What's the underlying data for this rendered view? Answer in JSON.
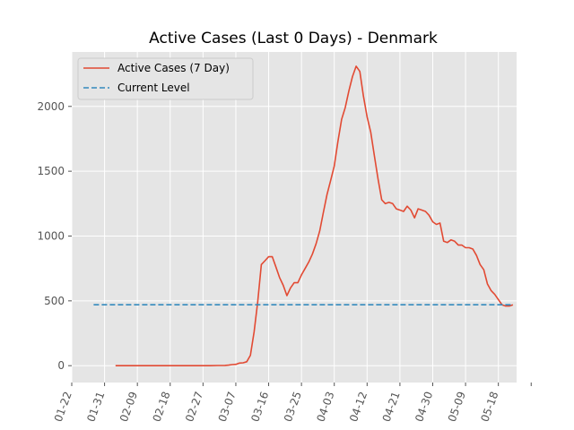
{
  "chart_data": {
    "type": "line",
    "title": "Active Cases (Last 0 Days) - Denmark",
    "xlabel": "",
    "ylabel": "",
    "x_ticks": [
      "01-22",
      "01-31",
      "02-09",
      "02-18",
      "02-27",
      "03-07",
      "03-16",
      "03-25",
      "04-03",
      "04-12",
      "04-21",
      "04-30",
      "05-09",
      "05-18"
    ],
    "x_range_days": [
      0,
      122
    ],
    "ylim": [
      -130,
      2420
    ],
    "y_ticks": [
      0,
      500,
      1000,
      1500,
      2000
    ],
    "grid": true,
    "legend_position": "top-left",
    "series": [
      {
        "name": "Active Cases (7 Day)",
        "color": "#E24A33",
        "style": "solid",
        "points": [
          [
            12,
            0
          ],
          [
            20,
            0
          ],
          [
            30,
            0
          ],
          [
            38,
            0
          ],
          [
            40,
            1
          ],
          [
            42,
            2
          ],
          [
            43,
            4
          ],
          [
            44,
            8
          ],
          [
            45,
            10
          ],
          [
            46,
            20
          ],
          [
            47,
            22
          ],
          [
            48,
            30
          ],
          [
            49,
            80
          ],
          [
            50,
            260
          ],
          [
            51,
            490
          ],
          [
            52,
            780
          ],
          [
            53,
            810
          ],
          [
            54,
            840
          ],
          [
            55,
            840
          ],
          [
            56,
            760
          ],
          [
            57,
            680
          ],
          [
            58,
            620
          ],
          [
            59,
            540
          ],
          [
            60,
            600
          ],
          [
            61,
            640
          ],
          [
            62,
            640
          ],
          [
            63,
            700
          ],
          [
            64,
            750
          ],
          [
            65,
            800
          ],
          [
            66,
            860
          ],
          [
            67,
            940
          ],
          [
            68,
            1040
          ],
          [
            69,
            1180
          ],
          [
            70,
            1320
          ],
          [
            71,
            1430
          ],
          [
            72,
            1540
          ],
          [
            73,
            1730
          ],
          [
            74,
            1900
          ],
          [
            75,
            1990
          ],
          [
            76,
            2120
          ],
          [
            77,
            2230
          ],
          [
            78,
            2310
          ],
          [
            79,
            2270
          ],
          [
            80,
            2080
          ],
          [
            81,
            1920
          ],
          [
            82,
            1800
          ],
          [
            83,
            1620
          ],
          [
            84,
            1440
          ],
          [
            85,
            1280
          ],
          [
            86,
            1250
          ],
          [
            87,
            1260
          ],
          [
            88,
            1250
          ],
          [
            89,
            1210
          ],
          [
            90,
            1200
          ],
          [
            91,
            1190
          ],
          [
            92,
            1230
          ],
          [
            93,
            1200
          ],
          [
            94,
            1140
          ],
          [
            95,
            1210
          ],
          [
            96,
            1200
          ],
          [
            97,
            1190
          ],
          [
            98,
            1160
          ],
          [
            99,
            1110
          ],
          [
            100,
            1090
          ],
          [
            101,
            1100
          ],
          [
            102,
            960
          ],
          [
            103,
            950
          ],
          [
            104,
            970
          ],
          [
            105,
            960
          ],
          [
            106,
            930
          ],
          [
            107,
            930
          ],
          [
            108,
            910
          ],
          [
            109,
            910
          ],
          [
            110,
            900
          ],
          [
            111,
            850
          ],
          [
            112,
            780
          ],
          [
            113,
            740
          ],
          [
            114,
            630
          ],
          [
            115,
            580
          ],
          [
            116,
            550
          ],
          [
            117,
            510
          ],
          [
            118,
            470
          ],
          [
            119,
            460
          ],
          [
            120,
            460
          ],
          [
            121,
            470
          ]
        ]
      },
      {
        "name": "Current Level",
        "color": "#348ABD",
        "style": "dashed",
        "points": [
          [
            6,
            470
          ],
          [
            121,
            470
          ]
        ]
      }
    ]
  }
}
